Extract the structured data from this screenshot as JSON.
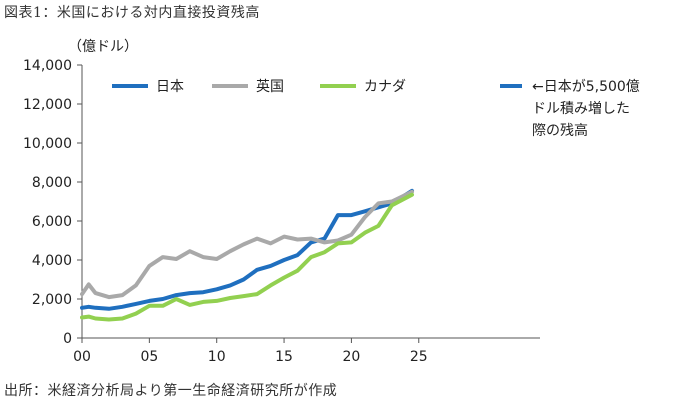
{
  "figure": {
    "title": "図表1：米国における対内直接投資残高",
    "source": "出所：米経済分析局より第一生命経済研究所が作成"
  },
  "chart_data": {
    "type": "line",
    "unit_label": "（億ドル）",
    "xlim": [
      0,
      34
    ],
    "x_ticks": [
      0,
      5,
      10,
      15,
      20,
      25
    ],
    "x_tick_labels": [
      "00",
      "05",
      "10",
      "15",
      "20",
      "25"
    ],
    "ylim": [
      0,
      14000
    ],
    "y_ticks": [
      0,
      2000,
      4000,
      6000,
      8000,
      10000,
      12000,
      14000
    ],
    "y_tick_labels": [
      "0",
      "2,000",
      "4,000",
      "6,000",
      "8,000",
      "10,000",
      "12,000",
      "14,000"
    ],
    "grid": false,
    "legend_position": "top",
    "x": [
      0,
      0.5,
      1,
      2,
      3,
      4,
      5,
      6,
      7,
      8,
      9,
      10,
      11,
      12,
      13,
      14,
      15,
      16,
      17,
      18,
      19,
      20,
      21,
      22,
      23,
      24.5
    ],
    "series": [
      {
        "name": "日本",
        "color": "#1f6fbf",
        "values": [
          1550,
          1600,
          1550,
          1500,
          1600,
          1750,
          1900,
          2000,
          2200,
          2300,
          2350,
          2500,
          2700,
          3000,
          3500,
          3700,
          4000,
          4250,
          4900,
          5100,
          6300,
          6300,
          6500,
          6700,
          6900,
          7550
        ]
      },
      {
        "name": "英国",
        "color": "#a9a9a9",
        "values": [
          2250,
          2750,
          2300,
          2100,
          2200,
          2700,
          3700,
          4150,
          4050,
          4450,
          4150,
          4050,
          4450,
          4800,
          5100,
          4850,
          5200,
          5050,
          5100,
          4900,
          5000,
          5300,
          6200,
          6900,
          7000,
          7500
        ]
      },
      {
        "name": "カナダ",
        "color": "#92d050",
        "values": [
          1050,
          1100,
          1000,
          950,
          1000,
          1250,
          1650,
          1650,
          2000,
          1700,
          1850,
          1900,
          2050,
          2150,
          2250,
          2700,
          3100,
          3450,
          4150,
          4400,
          4850,
          4900,
          5400,
          5750,
          6800,
          7350
        ]
      }
    ],
    "annotation": {
      "color": "#1f6fbf",
      "lines": [
        "←日本が5,500億",
        "ドル積み増した",
        "際の残高"
      ]
    }
  }
}
